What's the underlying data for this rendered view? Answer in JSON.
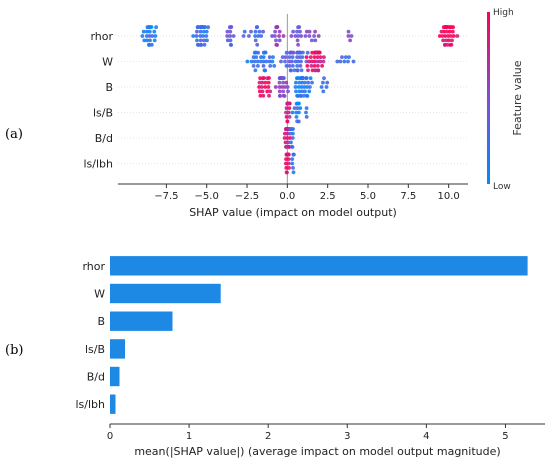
{
  "chart_data": [
    {
      "panel_label": "(a)",
      "type": "scatter",
      "subtype": "shap-beeswarm",
      "xlabel": "SHAP value (impact on model output)",
      "xlim": [
        -10.5,
        11.2
      ],
      "xticks": [
        -7.5,
        -5.0,
        -2.5,
        0.0,
        2.5,
        5.0,
        7.5,
        10.0
      ],
      "xtick_labels": [
        "−7.5",
        "−5.0",
        "−2.5",
        "0.0",
        "2.5",
        "5.0",
        "7.5",
        "10.0"
      ],
      "features": [
        {
          "name": "rhor",
          "clusters": [
            {
              "center": -8.6,
              "spread": 0.9,
              "n": 22,
              "fv": 0.15
            },
            {
              "center": -5.3,
              "spread": 0.7,
              "n": 34,
              "fv": 0.2
            },
            {
              "center": -3.6,
              "spread": 0.4,
              "n": 12,
              "fv": 0.4
            },
            {
              "center": -2.1,
              "spread": 0.9,
              "n": 14,
              "fv": 0.3
            },
            {
              "center": -0.6,
              "spread": 0.6,
              "n": 14,
              "fv": 0.6
            },
            {
              "center": 1.2,
              "spread": 1.4,
              "n": 20,
              "fv": 0.45
            },
            {
              "center": 3.8,
              "spread": 0.3,
              "n": 4,
              "fv": 0.55
            },
            {
              "center": 9.9,
              "spread": 0.7,
              "n": 36,
              "fv": 0.95
            }
          ]
        },
        {
          "name": "W",
          "clusters": [
            {
              "center": -1.6,
              "spread": 1.2,
              "n": 30,
              "fv": 0.2
            },
            {
              "center": 0.5,
              "spread": 1.0,
              "n": 40,
              "fv": 0.35
            },
            {
              "center": 1.8,
              "spread": 0.8,
              "n": 38,
              "fv": 0.85
            },
            {
              "center": 3.4,
              "spread": 0.8,
              "n": 8,
              "fv": 0.3
            }
          ]
        },
        {
          "name": "B",
          "clusters": [
            {
              "center": -1.4,
              "spread": 0.6,
              "n": 20,
              "fv": 0.92
            },
            {
              "center": -0.3,
              "spread": 0.5,
              "n": 26,
              "fv": 0.55
            },
            {
              "center": 0.9,
              "spread": 0.8,
              "n": 40,
              "fv": 0.15
            },
            {
              "center": 2.2,
              "spread": 0.4,
              "n": 6,
              "fv": 0.2
            }
          ]
        },
        {
          "name": "ls/B",
          "clusters": [
            {
              "center": 0.05,
              "spread": 0.2,
              "n": 22,
              "fv": 0.85
            },
            {
              "center": 0.6,
              "spread": 0.4,
              "n": 12,
              "fv": 0.15
            },
            {
              "center": 1.2,
              "spread": 0.15,
              "n": 3,
              "fv": 0.2
            }
          ]
        },
        {
          "name": "B/d",
          "clusters": [
            {
              "center": 0.0,
              "spread": 0.25,
              "n": 34,
              "fv": 0.8
            },
            {
              "center": 0.3,
              "spread": 0.2,
              "n": 10,
              "fv": 0.25
            }
          ]
        },
        {
          "name": "ls/lbh",
          "clusters": [
            {
              "center": 0.0,
              "spread": 0.15,
              "n": 30,
              "fv": 0.85
            },
            {
              "center": 0.35,
              "spread": 0.1,
              "n": 6,
              "fv": 0.2
            }
          ]
        }
      ],
      "colorbar": {
        "title": "Feature value",
        "high_label": "High",
        "low_label": "Low",
        "low_color": "#008afb",
        "mid_color": "#7b4fd6",
        "high_color": "#ff0052"
      }
    },
    {
      "panel_label": "(b)",
      "type": "bar",
      "orientation": "horizontal",
      "categories": [
        "rhor",
        "W",
        "B",
        "ls/B",
        "B/d",
        "ls/lbh"
      ],
      "values": [
        5.28,
        1.4,
        0.79,
        0.19,
        0.12,
        0.07
      ],
      "xlabel": "mean(|SHAP value|) (average impact on model output magnitude)",
      "xlim": [
        0,
        5.5
      ],
      "xticks": [
        0,
        1,
        2,
        3,
        4,
        5
      ],
      "xtick_labels": [
        "0",
        "1",
        "2",
        "3",
        "4",
        "5"
      ],
      "bar_color": "#1e88e5"
    }
  ]
}
